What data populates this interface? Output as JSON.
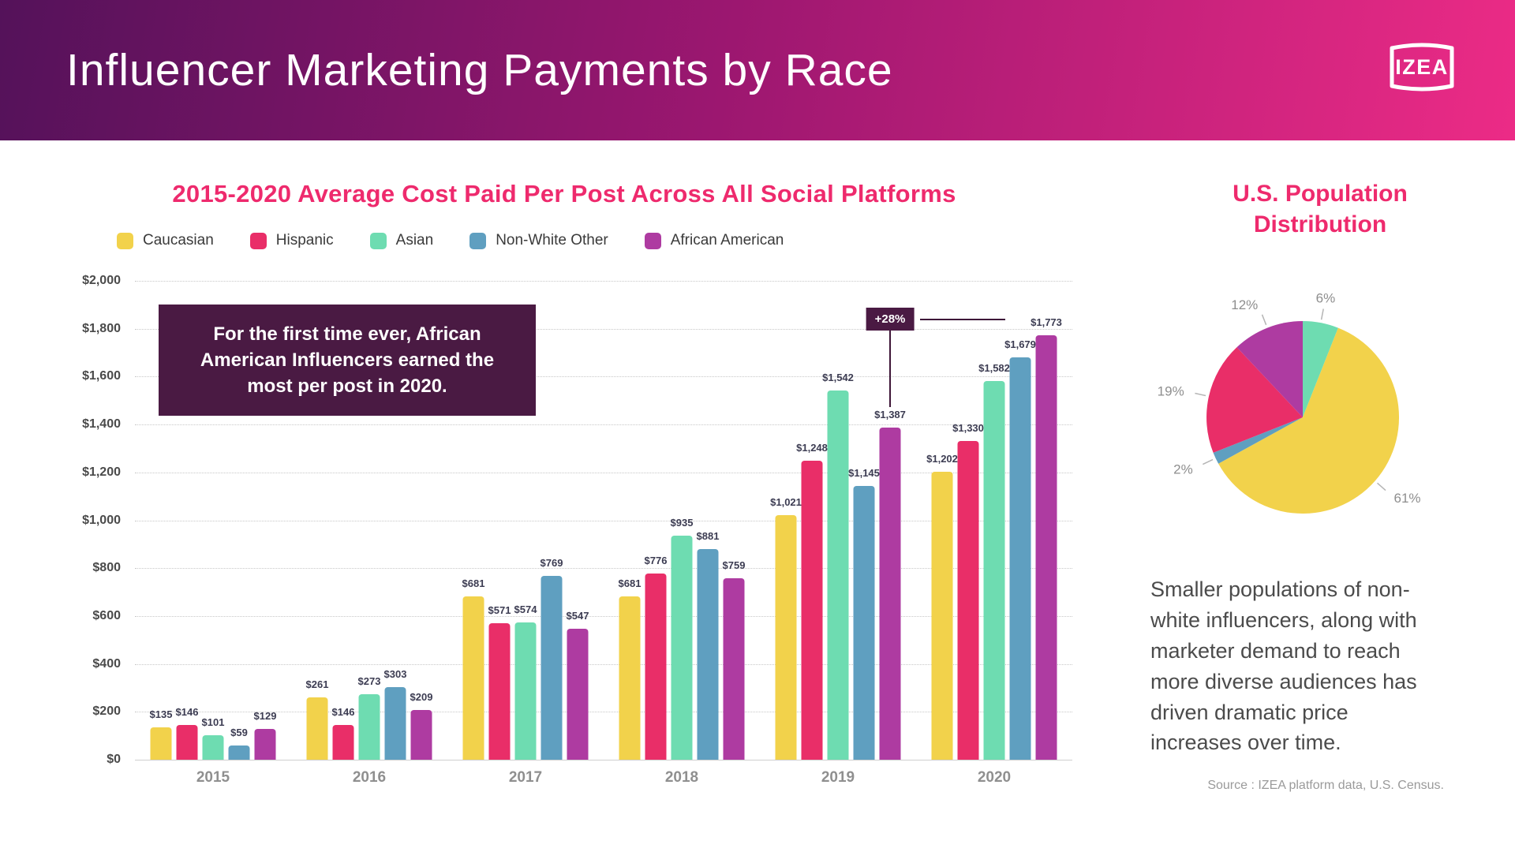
{
  "header": {
    "title": "Influencer Marketing Payments by Race",
    "logo_text": "IZEA"
  },
  "colors": {
    "accent_pink": "#ee2a6d",
    "annotation_bg": "#4a1a43",
    "header_gradient": [
      "#54125a",
      "#ec2b86"
    ],
    "caucasian": "#f2d24b",
    "hispanic": "#e92e68",
    "asian": "#6edcb1",
    "non_white_other": "#5f9fc0",
    "african_american": "#ae3ba1"
  },
  "chart_data": [
    {
      "type": "bar",
      "title": "2015-2020 Average Cost Paid Per Post Across All Social Platforms",
      "categories": [
        "2015",
        "2016",
        "2017",
        "2018",
        "2019",
        "2020"
      ],
      "series": [
        {
          "name": "Caucasian",
          "color": "#f2d24b",
          "values": [
            135,
            261,
            681,
            681,
            1021,
            1202
          ]
        },
        {
          "name": "Hispanic",
          "color": "#e92e68",
          "values": [
            146,
            146,
            571,
            776,
            1248,
            1330
          ]
        },
        {
          "name": "Asian",
          "color": "#6edcb1",
          "values": [
            101,
            273,
            574,
            935,
            1542,
            1582
          ]
        },
        {
          "name": "Non-White Other",
          "color": "#5f9fc0",
          "values": [
            59,
            303,
            769,
            881,
            1145,
            1679
          ]
        },
        {
          "name": "African American",
          "color": "#ae3ba1",
          "values": [
            129,
            209,
            547,
            759,
            1387,
            1773
          ]
        }
      ],
      "ylabel_prefix": "$",
      "ylim": [
        0,
        2000
      ],
      "ytick_step": 200,
      "grid": true,
      "legend_position": "top",
      "annotation_box": "For the first time ever, African American Influencers earned the most per post in 2020.",
      "callout": {
        "label": "+28%",
        "from": {
          "category": "2019",
          "series": "African American"
        },
        "to": {
          "category": "2020",
          "series": "African American"
        }
      }
    },
    {
      "type": "pie",
      "title": "U.S. Population Distribution",
      "start_angle_deg": 0,
      "direction": "clockwise",
      "slices": [
        {
          "series": "Asian",
          "label": "6%",
          "value": 6,
          "color": "#6edcb1"
        },
        {
          "series": "Caucasian",
          "label": "61%",
          "value": 61,
          "color": "#f2d24b"
        },
        {
          "series": "Non-White Other",
          "label": "2%",
          "value": 2,
          "color": "#5f9fc0"
        },
        {
          "series": "Hispanic",
          "label": "19%",
          "value": 19,
          "color": "#e92e68"
        },
        {
          "series": "African American",
          "label": "12%",
          "value": 12,
          "color": "#ae3ba1"
        }
      ]
    }
  ],
  "aside": {
    "paragraph": "Smaller populations of non-white influencers, along with marketer demand to reach more diverse audiences has driven dramatic price increases over time.",
    "source": "Source : IZEA platform data, U.S. Census."
  }
}
